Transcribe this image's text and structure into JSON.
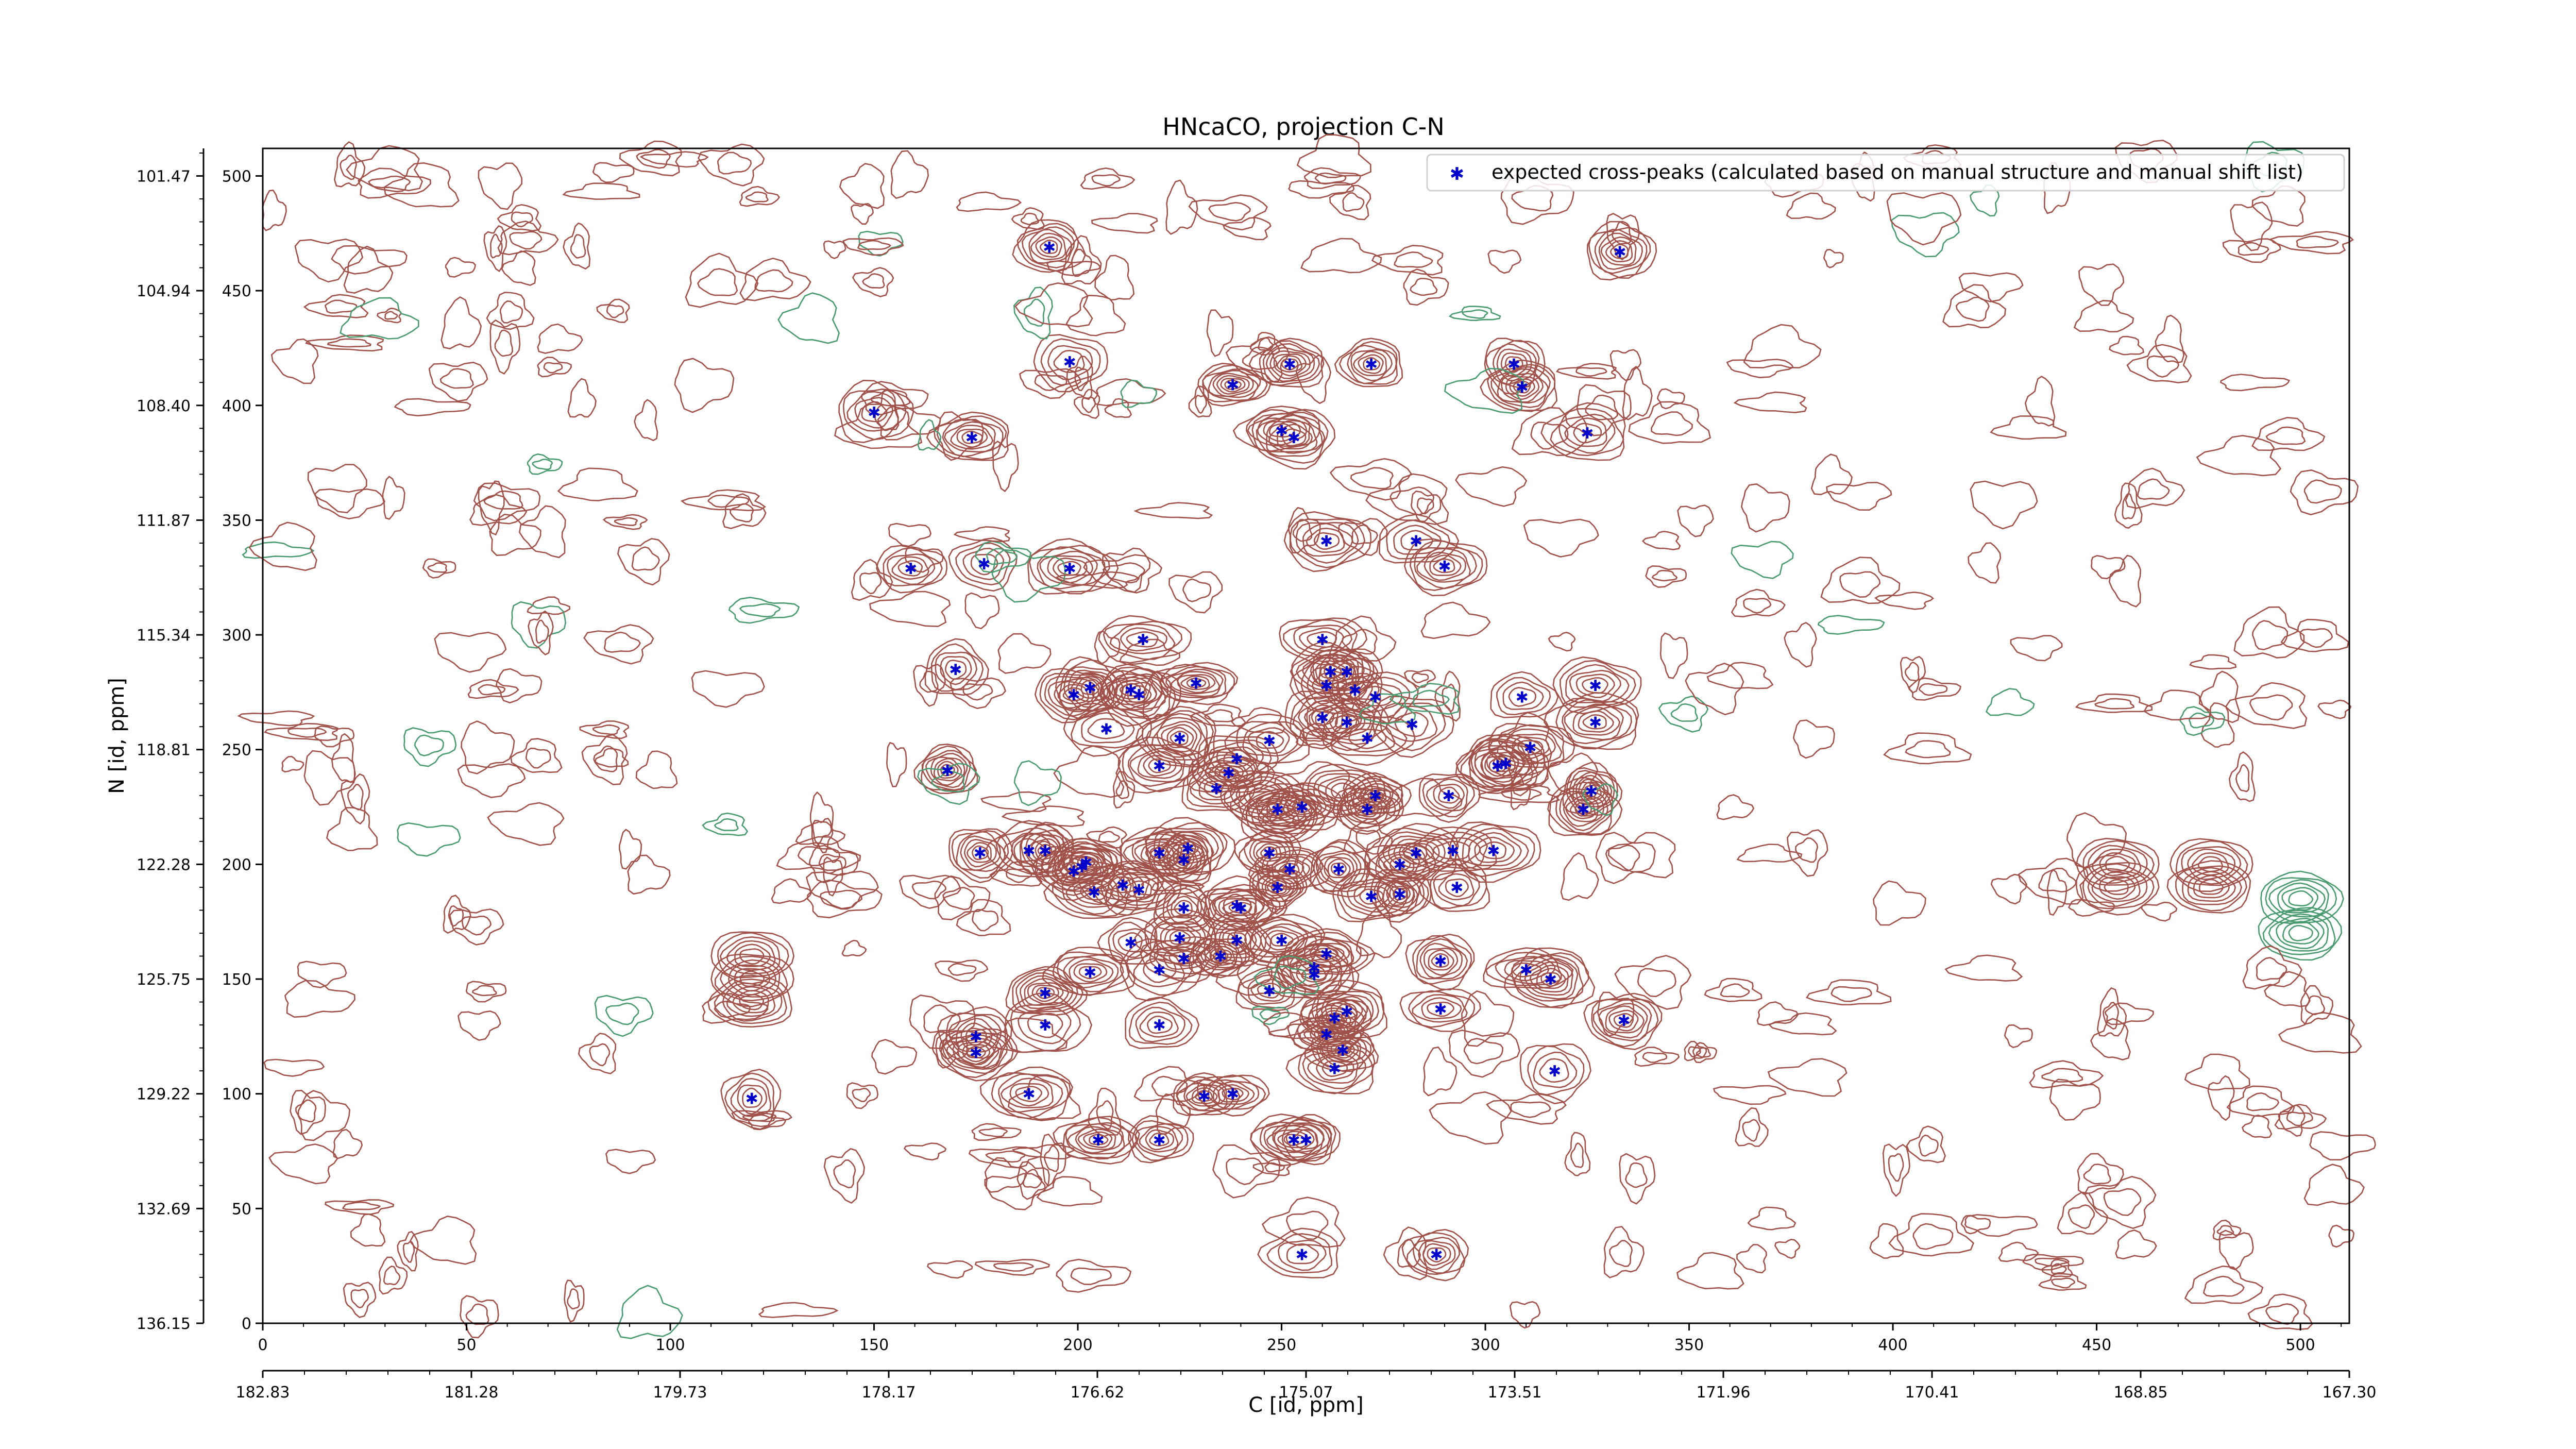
{
  "chart_data": {
    "type": "scatter",
    "title": "HNcaCO, projection C-N",
    "xlabel": "C [id, ppm]",
    "ylabel": "N [id, ppm]",
    "legend": {
      "entry": "expected cross-peaks (calculated based on manual structure and manual shift list)",
      "placement": "top-right"
    },
    "x_index_range": [
      0,
      512
    ],
    "y_index_range": [
      0,
      512
    ],
    "x_index_ticks": [
      "0",
      "50",
      "100",
      "150",
      "200",
      "250",
      "300",
      "350",
      "400",
      "450",
      "500"
    ],
    "x_ppm_ticks": [
      "182.83",
      "181.28",
      "179.73",
      "178.17",
      "176.62",
      "175.07",
      "173.51",
      "171.96",
      "170.41",
      "168.85",
      "167.30"
    ],
    "y_index_ticks": [
      "0",
      "50",
      "100",
      "150",
      "200",
      "250",
      "300",
      "350",
      "400",
      "450",
      "500"
    ],
    "y_ppm_ticks": [
      "136.15",
      "132.69",
      "129.22",
      "125.75",
      "122.28",
      "118.81",
      "115.34",
      "111.87",
      "108.40",
      "104.94",
      "101.47"
    ],
    "colors": {
      "positive_contours": "#a0524a",
      "negative_contours": "#4a9a70",
      "peak_markers": "#0000cc"
    },
    "series": [
      {
        "name": "expected cross-peaks (calculated based on manual structure and manual shift list)",
        "points": [
          [
            193,
            469
          ],
          [
            333,
            467
          ],
          [
            198,
            419
          ],
          [
            252,
            418
          ],
          [
            272,
            418
          ],
          [
            307,
            418
          ],
          [
            238,
            409
          ],
          [
            309,
            408
          ],
          [
            150,
            397
          ],
          [
            174,
            386
          ],
          [
            253,
            386
          ],
          [
            250,
            389
          ],
          [
            325,
            388
          ],
          [
            177,
            331
          ],
          [
            198,
            329
          ],
          [
            159,
            329
          ],
          [
            261,
            341
          ],
          [
            283,
            341
          ],
          [
            290,
            330
          ],
          [
            216,
            298
          ],
          [
            260,
            298
          ],
          [
            170,
            285
          ],
          [
            199,
            274
          ],
          [
            203,
            277
          ],
          [
            213,
            276
          ],
          [
            215,
            274
          ],
          [
            229,
            279
          ],
          [
            261,
            278
          ],
          [
            262,
            284
          ],
          [
            266,
            284
          ],
          [
            268,
            276
          ],
          [
            273,
            273
          ],
          [
            260,
            264
          ],
          [
            282,
            261
          ],
          [
            266,
            262
          ],
          [
            207,
            259
          ],
          [
            225,
            255
          ],
          [
            247,
            254
          ],
          [
            271,
            255
          ],
          [
            327,
            262
          ],
          [
            327,
            278
          ],
          [
            309,
            273
          ],
          [
            168,
            241
          ],
          [
            220,
            243
          ],
          [
            234,
            233
          ],
          [
            237,
            240
          ],
          [
            239,
            246
          ],
          [
            305,
            244
          ],
          [
            311,
            251
          ],
          [
            303,
            243
          ],
          [
            273,
            230
          ],
          [
            271,
            224
          ],
          [
            255,
            225
          ],
          [
            249,
            224
          ],
          [
            291,
            230
          ],
          [
            326,
            232
          ],
          [
            324,
            224
          ],
          [
            176,
            205
          ],
          [
            188,
            206
          ],
          [
            192,
            206
          ],
          [
            201,
            199
          ],
          [
            202,
            201
          ],
          [
            199,
            197
          ],
          [
            220,
            205
          ],
          [
            227,
            207
          ],
          [
            226,
            202
          ],
          [
            247,
            205
          ],
          [
            252,
            198
          ],
          [
            264,
            198
          ],
          [
            279,
            200
          ],
          [
            283,
            205
          ],
          [
            292,
            206
          ],
          [
            302,
            206
          ],
          [
            211,
            191
          ],
          [
            215,
            189
          ],
          [
            204,
            188
          ],
          [
            249,
            190
          ],
          [
            279,
            187
          ],
          [
            272,
            186
          ],
          [
            293,
            190
          ],
          [
            226,
            181
          ],
          [
            239,
            182
          ],
          [
            240,
            181
          ],
          [
            213,
            166
          ],
          [
            225,
            168
          ],
          [
            239,
            167
          ],
          [
            250,
            167
          ],
          [
            261,
            161
          ],
          [
            203,
            153
          ],
          [
            220,
            154
          ],
          [
            226,
            159
          ],
          [
            235,
            160
          ],
          [
            258,
            155
          ],
          [
            258,
            152
          ],
          [
            247,
            145
          ],
          [
            192,
            144
          ],
          [
            289,
            158
          ],
          [
            310,
            154
          ],
          [
            316,
            150
          ],
          [
            289,
            137
          ],
          [
            266,
            136
          ],
          [
            263,
            133
          ],
          [
            192,
            130
          ],
          [
            220,
            130
          ],
          [
            334,
            132
          ],
          [
            175,
            125
          ],
          [
            261,
            126
          ],
          [
            175,
            118
          ],
          [
            265,
            119
          ],
          [
            263,
            111
          ],
          [
            317,
            110
          ],
          [
            120,
            98
          ],
          [
            188,
            100
          ],
          [
            231,
            99
          ],
          [
            238,
            100
          ],
          [
            205,
            80
          ],
          [
            220,
            80
          ],
          [
            253,
            80
          ],
          [
            256,
            80
          ],
          [
            255,
            30
          ],
          [
            288,
            30
          ]
        ]
      }
    ]
  }
}
